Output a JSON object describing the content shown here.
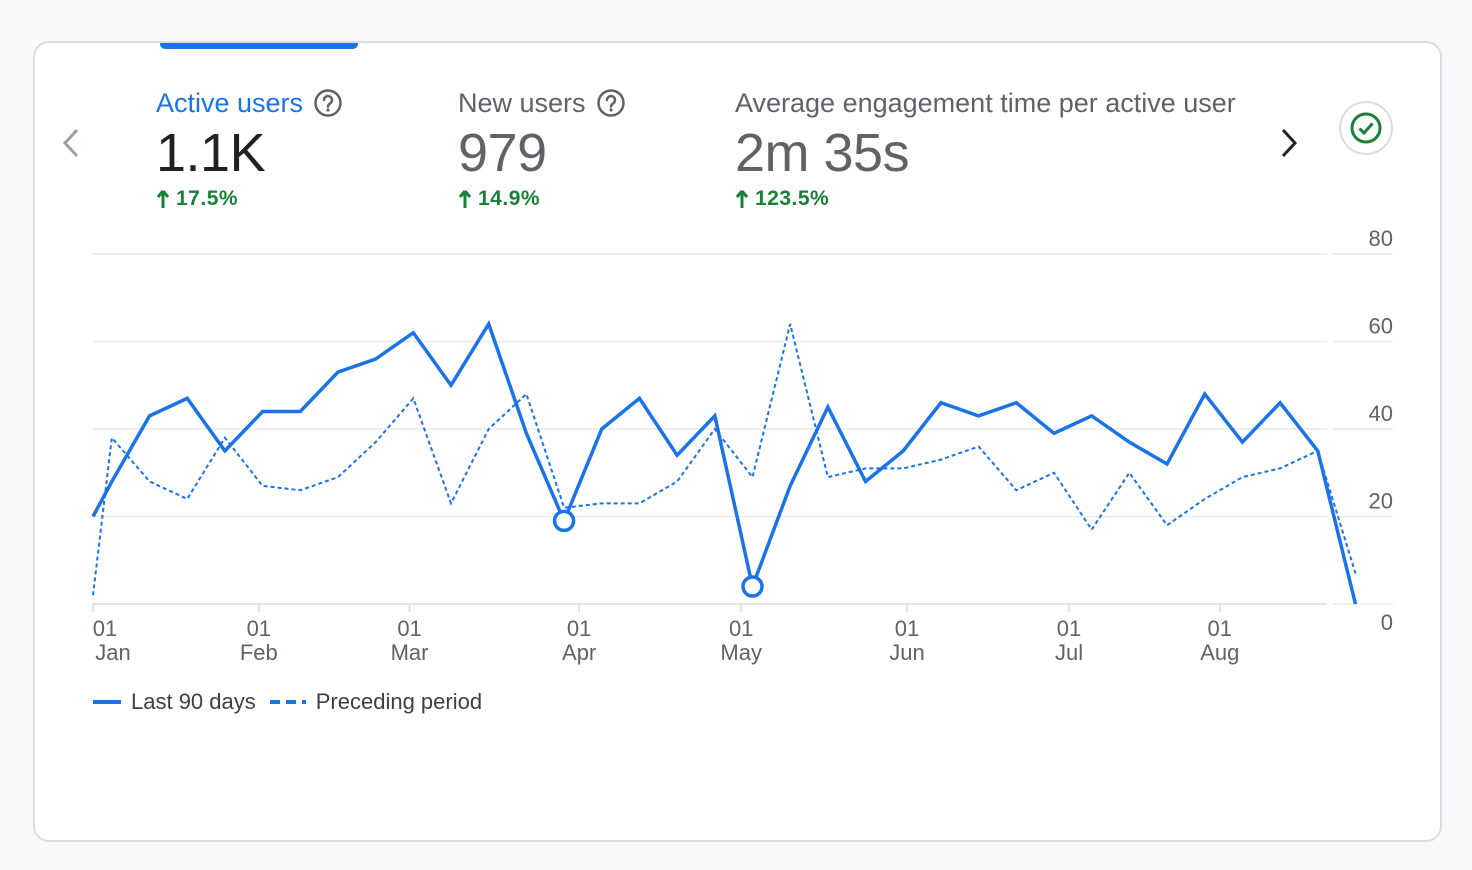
{
  "metrics": [
    {
      "label": "Active users",
      "value": "1.1K",
      "change": "17.5%"
    },
    {
      "label": "New users",
      "value": "979",
      "change": "14.9%"
    },
    {
      "label": "Average engagement time per active user",
      "value": "2m 35s",
      "change": "123.5%"
    }
  ],
  "colors": {
    "accent": "#1a73e8",
    "positive": "#188038",
    "grid": "#e0e0e0",
    "muted_text": "#5f6368"
  },
  "icons": {
    "prev": "chevron-left-icon",
    "next": "chevron-right-icon",
    "help": "help-circle-icon",
    "status": "check-circle-icon",
    "change": "arrow-up-icon"
  },
  "chart_data": {
    "type": "line",
    "ylim": [
      0,
      80
    ],
    "y_ticks": [
      "0",
      "20",
      "40",
      "60",
      "80"
    ],
    "y_axis_side": "right",
    "x_ticks": [
      {
        "day": "01",
        "month": "Jan",
        "x": 0
      },
      {
        "day": "01",
        "month": "Feb",
        "x": 4.4
      },
      {
        "day": "01",
        "month": "Mar",
        "x": 8.4
      },
      {
        "day": "01",
        "month": "Apr",
        "x": 12.9
      },
      {
        "day": "01",
        "month": "May",
        "x": 17.2
      },
      {
        "day": "01",
        "month": "Jun",
        "x": 21.6
      },
      {
        "day": "01",
        "month": "Jul",
        "x": 25.9
      },
      {
        "day": "01",
        "month": "Aug",
        "x": 29.9
      }
    ],
    "x_range": [
      0,
      33.7
    ],
    "grid": true,
    "legend_position": "bottom-left",
    "series": [
      {
        "name": "Last 90 days",
        "style": "solid",
        "points": [
          [
            0,
            20
          ],
          [
            0.5,
            28
          ],
          [
            1.5,
            43
          ],
          [
            2.5,
            47
          ],
          [
            3.5,
            35
          ],
          [
            4.5,
            44
          ],
          [
            5.5,
            44
          ],
          [
            6.5,
            53
          ],
          [
            7.5,
            56
          ],
          [
            8.5,
            62
          ],
          [
            9.5,
            50
          ],
          [
            10.5,
            64
          ],
          [
            11.5,
            39
          ],
          [
            12.5,
            19
          ],
          [
            13.5,
            40
          ],
          [
            14.5,
            47
          ],
          [
            15.5,
            34
          ],
          [
            16.5,
            43
          ],
          [
            17.5,
            4
          ],
          [
            18.5,
            27
          ],
          [
            19.5,
            45
          ],
          [
            20.5,
            28
          ],
          [
            21.5,
            35
          ],
          [
            22.5,
            46
          ],
          [
            23.5,
            43
          ],
          [
            24.5,
            46
          ],
          [
            25.5,
            39
          ],
          [
            26.5,
            43
          ],
          [
            27.5,
            37
          ],
          [
            28.5,
            32
          ],
          [
            29.5,
            48
          ],
          [
            30.5,
            37
          ],
          [
            31.5,
            46
          ],
          [
            32.5,
            35
          ],
          [
            33.5,
            0
          ]
        ],
        "markers": [
          [
            12.5,
            19
          ],
          [
            17.5,
            4
          ]
        ]
      },
      {
        "name": "Preceding period",
        "style": "dashed",
        "points": [
          [
            0,
            2
          ],
          [
            0.5,
            38
          ],
          [
            1.5,
            28
          ],
          [
            2.5,
            24
          ],
          [
            3.5,
            38
          ],
          [
            4.5,
            27
          ],
          [
            5.5,
            26
          ],
          [
            6.5,
            29
          ],
          [
            7.5,
            37
          ],
          [
            8.5,
            47
          ],
          [
            9.5,
            23
          ],
          [
            10.5,
            40
          ],
          [
            11.5,
            48
          ],
          [
            12.5,
            22
          ],
          [
            13.5,
            23
          ],
          [
            14.5,
            23
          ],
          [
            15.5,
            28
          ],
          [
            16.5,
            40
          ],
          [
            17.5,
            29
          ],
          [
            18.5,
            64
          ],
          [
            19.5,
            29
          ],
          [
            20.5,
            31
          ],
          [
            21.5,
            31
          ],
          [
            22.5,
            33
          ],
          [
            23.5,
            36
          ],
          [
            24.5,
            26
          ],
          [
            25.5,
            30
          ],
          [
            26.5,
            17
          ],
          [
            27.5,
            30
          ],
          [
            28.5,
            18
          ],
          [
            29.5,
            24
          ],
          [
            30.5,
            29
          ],
          [
            31.5,
            31
          ],
          [
            32.5,
            35
          ],
          [
            33.5,
            7
          ]
        ]
      }
    ]
  },
  "legend": {
    "current": "Last 90 days",
    "previous": "Preceding period"
  }
}
